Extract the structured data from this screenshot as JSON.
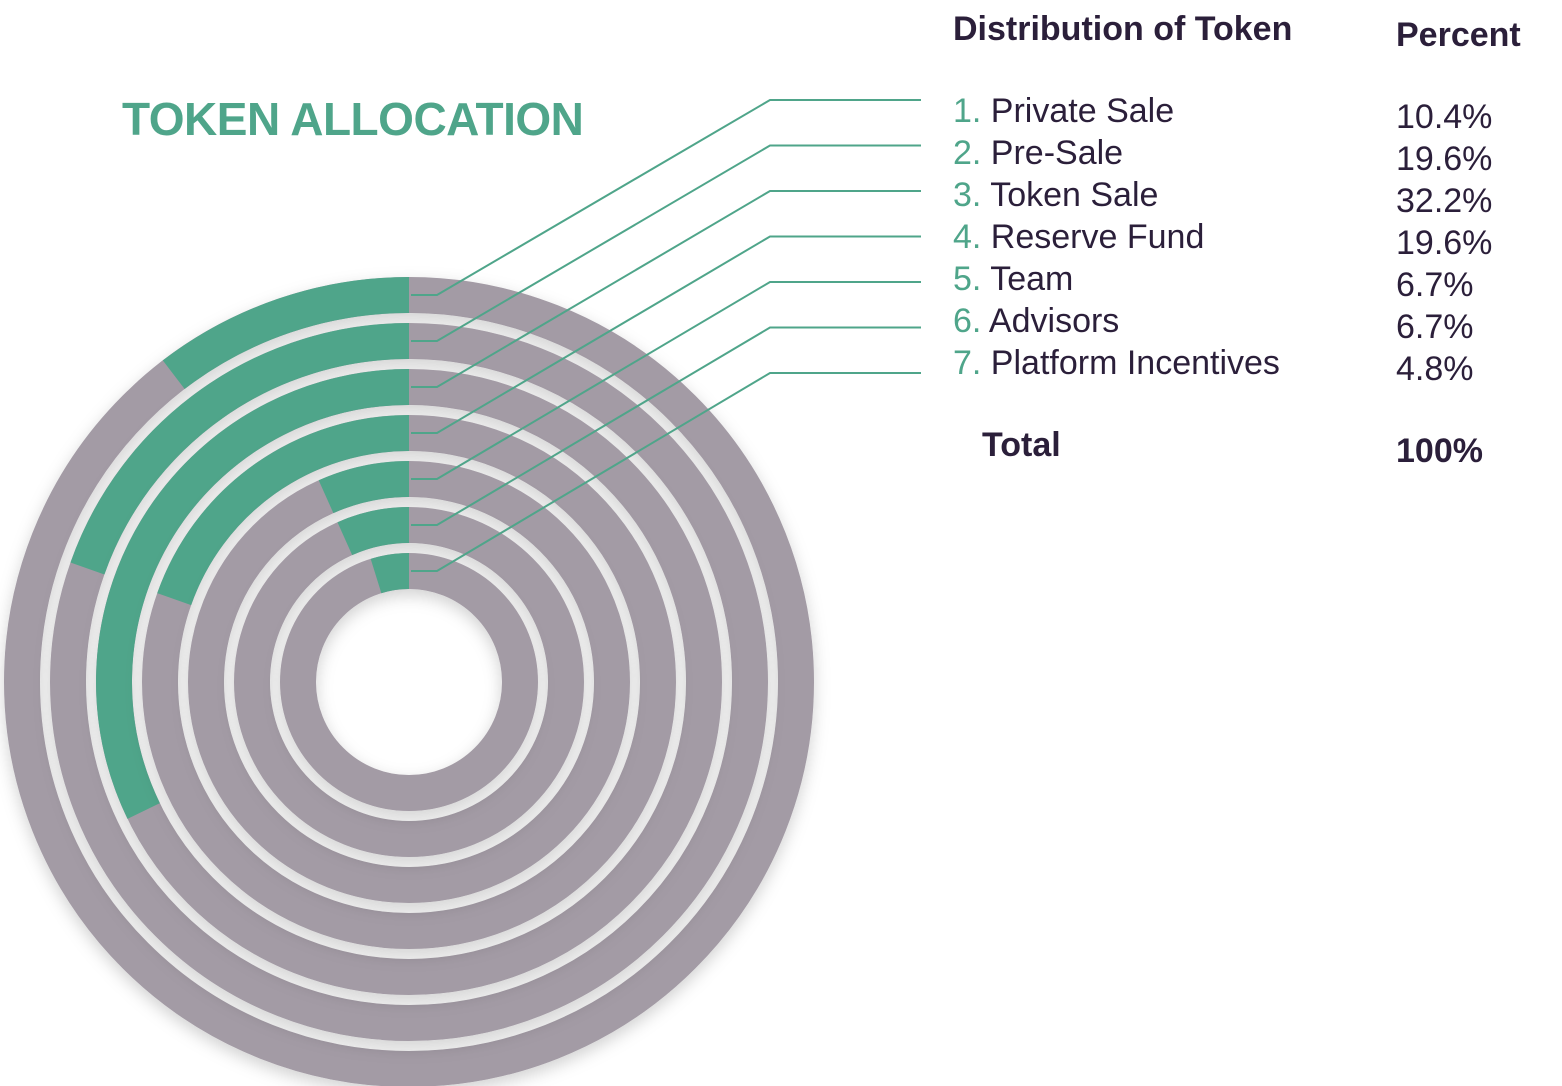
{
  "title": "TOKEN ALLOCATION",
  "table": {
    "header_label": "Distribution of Token",
    "header_percent": "Percent",
    "total_label": "Total",
    "total_value": "100%"
  },
  "chart_data": {
    "type": "radial-bar",
    "title": "TOKEN ALLOCATION",
    "categories": [
      "Private Sale",
      "Pre-Sale",
      "Token Sale",
      "Reserve Fund",
      "Team",
      "Advisors",
      "Platform Incentives"
    ],
    "values": [
      10.4,
      19.6,
      32.2,
      19.6,
      6.7,
      6.7,
      4.8
    ],
    "unit": "%",
    "items": [
      {
        "num": "1.",
        "label": "Private Sale",
        "value": 10.4,
        "text": "10.4%"
      },
      {
        "num": "2.",
        "label": "Pre-Sale",
        "value": 19.6,
        "text": "19.6%"
      },
      {
        "num": "3.",
        "label": "Token Sale",
        "value": 32.2,
        "text": "32.2%"
      },
      {
        "num": "4.",
        "label": "Reserve Fund",
        "value": 19.6,
        "text": "19.6%"
      },
      {
        "num": "5.",
        "label": "Team",
        "value": 6.7,
        "text": "6.7%"
      },
      {
        "num": "6.",
        "label": "Advisors",
        "value": 6.7,
        "text": "6.7%"
      },
      {
        "num": "7.",
        "label": "Platform Incentives",
        "value": 4.8,
        "text": "4.8%"
      }
    ],
    "colors": {
      "fill": "#4fa58a",
      "track": "#a39ba5",
      "text": "#2b1f3a",
      "accent": "#4fa58a"
    }
  }
}
